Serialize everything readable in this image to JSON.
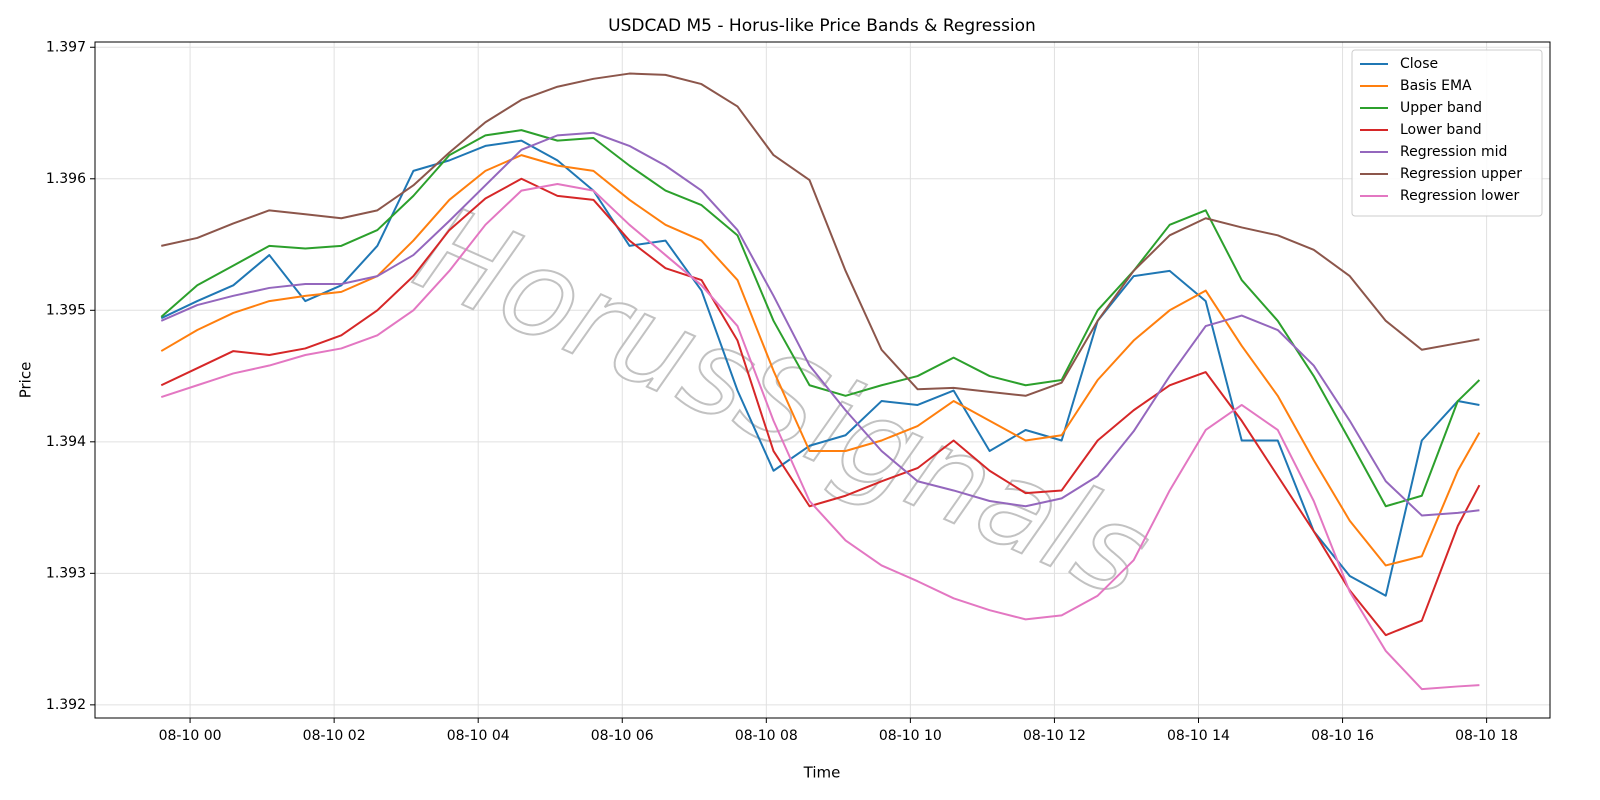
{
  "chart_data": {
    "type": "line",
    "title": "USDCAD M5 - Horus-like Price Bands & Regression",
    "x_label": "Time",
    "y_label": "Price",
    "watermark": "HorusSignals",
    "grid": true,
    "legend": "upper right",
    "x": [
      -0.4,
      0.1,
      0.6,
      1.1,
      1.6,
      2.1,
      2.6,
      3.1,
      3.6,
      4.1,
      4.6,
      5.1,
      5.6,
      6.1,
      6.6,
      7.1,
      7.6,
      8.1,
      8.6,
      9.1,
      9.6,
      10.1,
      10.6,
      11.1,
      11.6,
      12.1,
      12.6,
      13.1,
      13.6,
      14.1,
      14.6,
      15.1,
      15.6,
      16.1,
      16.6,
      17.1,
      17.6,
      17.9
    ],
    "xlim": [
      -1.32,
      18.88
    ],
    "xticks": [
      {
        "value": 0,
        "label": "08-10 00"
      },
      {
        "value": 2,
        "label": "08-10 02"
      },
      {
        "value": 4,
        "label": "08-10 04"
      },
      {
        "value": 6,
        "label": "08-10 06"
      },
      {
        "value": 8,
        "label": "08-10 08"
      },
      {
        "value": 10,
        "label": "08-10 10"
      },
      {
        "value": 12,
        "label": "08-10 12"
      },
      {
        "value": 14,
        "label": "08-10 14"
      },
      {
        "value": 16,
        "label": "08-10 16"
      },
      {
        "value": 18,
        "label": "08-10 18"
      }
    ],
    "ylim": [
      1.3919,
      1.39704
    ],
    "yticks": [
      1.392,
      1.393,
      1.394,
      1.395,
      1.396,
      1.397
    ],
    "series": [
      {
        "name": "Close",
        "color": "#1f77b4",
        "values": [
          1.39494,
          1.39507,
          1.39519,
          1.39542,
          1.39507,
          1.39519,
          1.39549,
          1.39606,
          1.39614,
          1.39625,
          1.39629,
          1.39614,
          1.39591,
          1.39549,
          1.39553,
          1.39515,
          1.39439,
          1.39378,
          1.39397,
          1.39405,
          1.39431,
          1.39428,
          1.39439,
          1.39393,
          1.39409,
          1.39401,
          1.39492,
          1.39526,
          1.3953,
          1.39507,
          1.39401,
          1.39401,
          1.39332,
          1.39298,
          1.39283,
          1.39401,
          1.39431,
          1.39428
        ]
      },
      {
        "name": "Basis EMA",
        "color": "#ff7f0e",
        "values": [
          1.39469,
          1.39485,
          1.39498,
          1.39507,
          1.39511,
          1.39514,
          1.39526,
          1.39553,
          1.39584,
          1.39606,
          1.39618,
          1.3961,
          1.39606,
          1.39584,
          1.39565,
          1.39553,
          1.39523,
          1.39454,
          1.39393,
          1.39393,
          1.39401,
          1.39412,
          1.39431,
          1.39416,
          1.39401,
          1.39405,
          1.39447,
          1.39477,
          1.395,
          1.39515,
          1.39473,
          1.39435,
          1.39386,
          1.3934,
          1.39306,
          1.39313,
          1.39378,
          1.39407
        ]
      },
      {
        "name": "Upper band",
        "color": "#2ca02c",
        "values": [
          1.39495,
          1.39519,
          1.39534,
          1.39549,
          1.39547,
          1.39549,
          1.39561,
          1.39587,
          1.39618,
          1.39633,
          1.39637,
          1.39629,
          1.39631,
          1.3961,
          1.39591,
          1.3958,
          1.39557,
          1.39492,
          1.39443,
          1.39435,
          1.39443,
          1.3945,
          1.39464,
          1.3945,
          1.39443,
          1.39447,
          1.395,
          1.3953,
          1.39565,
          1.39576,
          1.39523,
          1.39492,
          1.3945,
          1.39401,
          1.39351,
          1.39359,
          1.39431,
          1.39447
        ]
      },
      {
        "name": "Lower band",
        "color": "#d62728",
        "values": [
          1.39443,
          1.39456,
          1.39469,
          1.39466,
          1.39471,
          1.39481,
          1.395,
          1.39526,
          1.39561,
          1.39585,
          1.396,
          1.39587,
          1.39584,
          1.39553,
          1.39532,
          1.39523,
          1.39477,
          1.39393,
          1.39351,
          1.39359,
          1.3937,
          1.3938,
          1.39401,
          1.39378,
          1.39361,
          1.39363,
          1.39401,
          1.39424,
          1.39443,
          1.39453,
          1.39416,
          1.39374,
          1.39332,
          1.39287,
          1.39253,
          1.39264,
          1.39336,
          1.39367
        ]
      },
      {
        "name": "Regression mid",
        "color": "#9467bd",
        "values": [
          1.39492,
          1.39504,
          1.39511,
          1.39517,
          1.3952,
          1.3952,
          1.39526,
          1.39542,
          1.39568,
          1.39595,
          1.39622,
          1.39633,
          1.39635,
          1.39625,
          1.3961,
          1.39591,
          1.39561,
          1.39511,
          1.39458,
          1.39424,
          1.39393,
          1.3937,
          1.39363,
          1.39355,
          1.39351,
          1.39357,
          1.39374,
          1.39408,
          1.3945,
          1.39488,
          1.39496,
          1.39485,
          1.39458,
          1.39416,
          1.3937,
          1.39344,
          1.39346,
          1.39348
        ]
      },
      {
        "name": "Regression upper",
        "color": "#8c564b",
        "values": [
          1.39549,
          1.39555,
          1.39566,
          1.39576,
          1.39573,
          1.3957,
          1.39576,
          1.39595,
          1.3962,
          1.39643,
          1.3966,
          1.3967,
          1.39676,
          1.3968,
          1.39679,
          1.39672,
          1.39655,
          1.39618,
          1.39599,
          1.3953,
          1.3947,
          1.3944,
          1.39441,
          1.39438,
          1.39435,
          1.39445,
          1.39492,
          1.3953,
          1.39557,
          1.3957,
          1.39563,
          1.39557,
          1.39546,
          1.39526,
          1.39492,
          1.3947,
          1.39475,
          1.39478
        ]
      },
      {
        "name": "Regression lower",
        "color": "#e377c2",
        "values": [
          1.39434,
          1.39443,
          1.39452,
          1.39458,
          1.39466,
          1.39471,
          1.39481,
          1.395,
          1.3953,
          1.39565,
          1.39591,
          1.39596,
          1.39591,
          1.39565,
          1.39542,
          1.39519,
          1.39488,
          1.39416,
          1.39355,
          1.39325,
          1.39306,
          1.39294,
          1.39281,
          1.39272,
          1.39265,
          1.39268,
          1.39283,
          1.3931,
          1.39363,
          1.39409,
          1.39428,
          1.39409,
          1.39355,
          1.39286,
          1.39241,
          1.39212,
          1.39214,
          1.39215
        ]
      }
    ]
  }
}
